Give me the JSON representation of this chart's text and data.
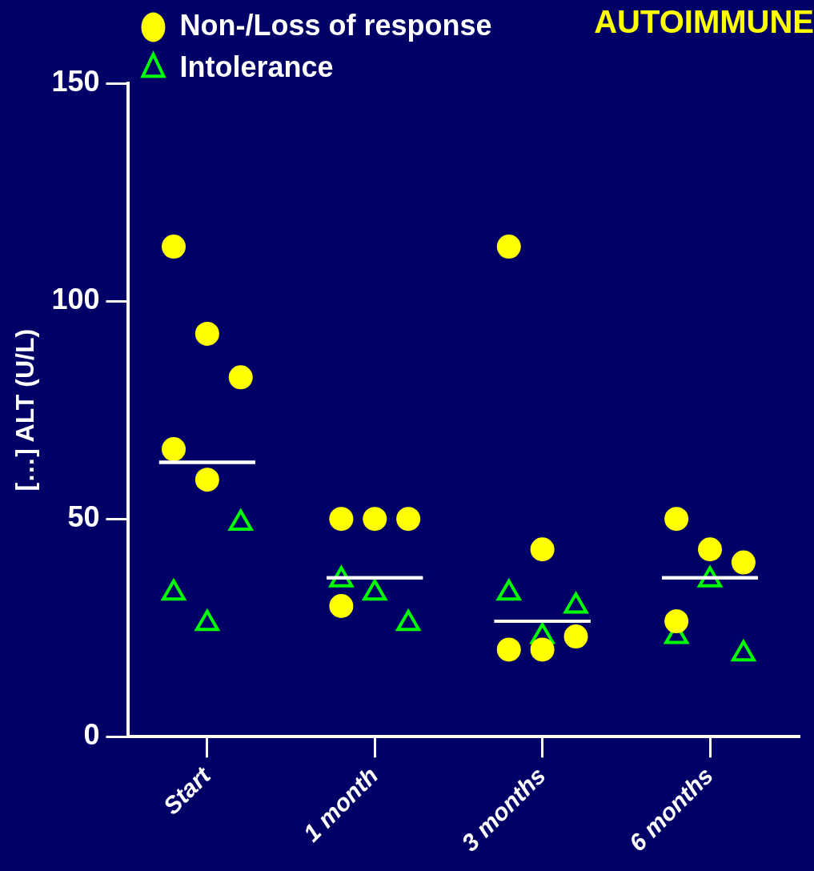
{
  "chart_data": {
    "type": "scatter",
    "title": "AUTOIMMUNE",
    "ylabel": "[…] ALT (U/L)",
    "categories": [
      "Start",
      "1 month",
      "3 months",
      "6 months"
    ],
    "ylim": [
      0,
      150
    ],
    "yticks": [
      0,
      50,
      100,
      150
    ],
    "grid": false,
    "legend": "top left",
    "series": [
      {
        "name": "Non-/Loss of response",
        "color": "#ffff00",
        "marker": "circle",
        "x": [
          "Start",
          "Start",
          "Start",
          "Start",
          "Start",
          "1 month",
          "1 month",
          "1 month",
          "1 month",
          "3 months",
          "3 months",
          "3 months",
          "3 months",
          "3 months",
          "6 months",
          "6 months",
          "6 months",
          "6 months"
        ],
        "values": [
          112.5,
          92.5,
          82.5,
          66,
          59,
          50,
          50,
          50,
          30,
          112.5,
          43,
          23,
          20,
          20,
          50,
          43,
          40,
          26.5
        ]
      },
      {
        "name": "Intolerance",
        "color": "#00ff00",
        "marker": "triangle",
        "x": [
          "Start",
          "Start",
          "Start",
          "1 month",
          "1 month",
          "1 month",
          "3 months",
          "3 months",
          "3 months",
          "6 months",
          "6 months",
          "6 months"
        ],
        "values": [
          49,
          33,
          26,
          33,
          26,
          36,
          30,
          33,
          23,
          36,
          19,
          23
        ]
      },
      {
        "type": "box",
        "color": "#ffffff",
        "boxes": [
          {
            "low": 63,
            "q1": 63,
            "median": 63,
            "q3": 63,
            "high": 63
          },
          {
            "low": 36.5,
            "q1": 36.5,
            "median": 36.5,
            "q3": 36.5,
            "high": 36.5
          },
          {
            "low": 26.5,
            "q1": 26.5,
            "median": 26.5,
            "q3": 26.5,
            "high": 26.5
          },
          {
            "low": 36.5,
            "q1": 36.5,
            "median": 36.5,
            "q3": 36.5,
            "high": 36.5
          }
        ]
      }
    ]
  }
}
